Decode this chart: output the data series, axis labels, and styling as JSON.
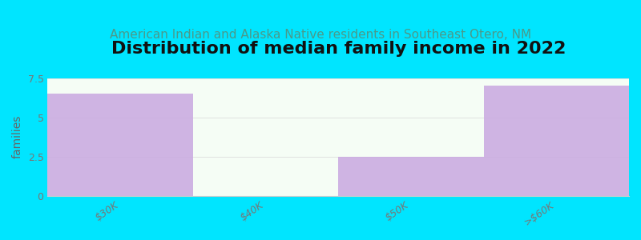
{
  "title": "Distribution of median family income in 2022",
  "subtitle": "American Indian and Alaska Native residents in Southeast Otero, NM",
  "categories": [
    "$30K",
    "$40K",
    "$50K",
    ">$60K"
  ],
  "values": [
    6.5,
    0.0,
    2.5,
    7.0
  ],
  "bar_color": "#c9a8e0",
  "bar_alpha": 0.85,
  "bg_gradient_top": "#e8f5ee",
  "bg_gradient_bottom": "#f8fff8",
  "background_color": "#00e5ff",
  "plot_bg_color": "#f5fdf5",
  "ylabel": "families",
  "ylim": [
    0,
    7.5
  ],
  "yticks": [
    0,
    2.5,
    5,
    7.5
  ],
  "title_fontsize": 16,
  "subtitle_fontsize": 11,
  "title_color": "#111111",
  "subtitle_color": "#4a9a8a",
  "tick_color": "#777777",
  "ylabel_color": "#666666",
  "grid_color": "#dddddd"
}
